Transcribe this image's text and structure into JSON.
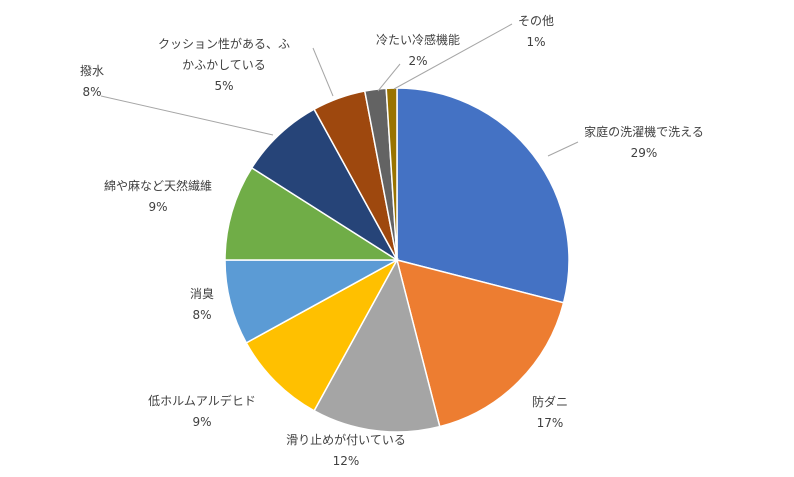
{
  "chart_data": {
    "type": "pie",
    "title": "",
    "slices": [
      {
        "label": "家庭の洗濯機で洗える",
        "value": 29,
        "value_label": "29%",
        "color": "#4472C4"
      },
      {
        "label": "防ダニ",
        "value": 17,
        "value_label": "17%",
        "color": "#ED7D31"
      },
      {
        "label": "滑り止めが付いている",
        "value": 12,
        "value_label": "12%",
        "color": "#A5A5A5"
      },
      {
        "label": "低ホルムアルデヒド",
        "value": 9,
        "value_label": "9%",
        "color": "#FFC000"
      },
      {
        "label": "消臭",
        "value": 8,
        "value_label": "8%",
        "color": "#5B9BD5"
      },
      {
        "label": "綿や麻など天然繊維",
        "value": 9,
        "value_label": "9%",
        "color": "#70AD47"
      },
      {
        "label": "撥水",
        "value": 8,
        "value_label": "8%",
        "color": "#264478"
      },
      {
        "label": "クッション性がある、ふかふかしている",
        "label_lines": [
          "クッション性がある、ふ",
          "かふかしている"
        ],
        "value": 5,
        "value_label": "5%",
        "color": "#9E480E"
      },
      {
        "label": "冷たい冷感機能",
        "value": 2,
        "value_label": "2%",
        "color": "#636363"
      },
      {
        "label": "その他",
        "value": 1,
        "value_label": "1%",
        "color": "#997300"
      }
    ],
    "start_angle_deg": 0,
    "direction": "clockwise",
    "legend": "none",
    "data_labels": "outside-with-leader-lines"
  }
}
